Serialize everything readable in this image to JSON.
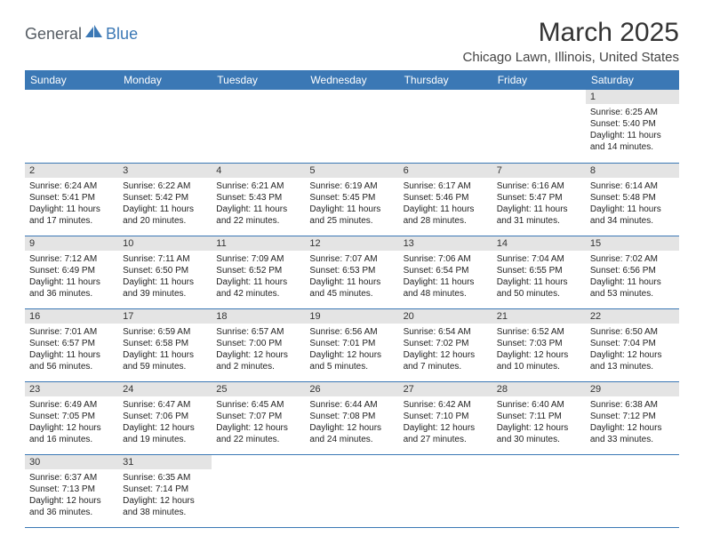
{
  "logo": {
    "part1": "General",
    "part2": "Blue"
  },
  "title": "March 2025",
  "location": "Chicago Lawn, Illinois, United States",
  "colors": {
    "header_bg": "#3b78b5",
    "header_fg": "#ffffff",
    "daynum_bg": "#e4e4e4",
    "border": "#3b78b5",
    "logo_gray": "#555c63",
    "logo_blue": "#3b78b5"
  },
  "weekdays": [
    "Sunday",
    "Monday",
    "Tuesday",
    "Wednesday",
    "Thursday",
    "Friday",
    "Saturday"
  ],
  "weeks": [
    [
      {
        "empty": true
      },
      {
        "empty": true
      },
      {
        "empty": true
      },
      {
        "empty": true
      },
      {
        "empty": true
      },
      {
        "empty": true
      },
      {
        "n": "1",
        "sr": "Sunrise: 6:25 AM",
        "ss": "Sunset: 5:40 PM",
        "d1": "Daylight: 11 hours",
        "d2": "and 14 minutes."
      }
    ],
    [
      {
        "n": "2",
        "sr": "Sunrise: 6:24 AM",
        "ss": "Sunset: 5:41 PM",
        "d1": "Daylight: 11 hours",
        "d2": "and 17 minutes."
      },
      {
        "n": "3",
        "sr": "Sunrise: 6:22 AM",
        "ss": "Sunset: 5:42 PM",
        "d1": "Daylight: 11 hours",
        "d2": "and 20 minutes."
      },
      {
        "n": "4",
        "sr": "Sunrise: 6:21 AM",
        "ss": "Sunset: 5:43 PM",
        "d1": "Daylight: 11 hours",
        "d2": "and 22 minutes."
      },
      {
        "n": "5",
        "sr": "Sunrise: 6:19 AM",
        "ss": "Sunset: 5:45 PM",
        "d1": "Daylight: 11 hours",
        "d2": "and 25 minutes."
      },
      {
        "n": "6",
        "sr": "Sunrise: 6:17 AM",
        "ss": "Sunset: 5:46 PM",
        "d1": "Daylight: 11 hours",
        "d2": "and 28 minutes."
      },
      {
        "n": "7",
        "sr": "Sunrise: 6:16 AM",
        "ss": "Sunset: 5:47 PM",
        "d1": "Daylight: 11 hours",
        "d2": "and 31 minutes."
      },
      {
        "n": "8",
        "sr": "Sunrise: 6:14 AM",
        "ss": "Sunset: 5:48 PM",
        "d1": "Daylight: 11 hours",
        "d2": "and 34 minutes."
      }
    ],
    [
      {
        "n": "9",
        "sr": "Sunrise: 7:12 AM",
        "ss": "Sunset: 6:49 PM",
        "d1": "Daylight: 11 hours",
        "d2": "and 36 minutes."
      },
      {
        "n": "10",
        "sr": "Sunrise: 7:11 AM",
        "ss": "Sunset: 6:50 PM",
        "d1": "Daylight: 11 hours",
        "d2": "and 39 minutes."
      },
      {
        "n": "11",
        "sr": "Sunrise: 7:09 AM",
        "ss": "Sunset: 6:52 PM",
        "d1": "Daylight: 11 hours",
        "d2": "and 42 minutes."
      },
      {
        "n": "12",
        "sr": "Sunrise: 7:07 AM",
        "ss": "Sunset: 6:53 PM",
        "d1": "Daylight: 11 hours",
        "d2": "and 45 minutes."
      },
      {
        "n": "13",
        "sr": "Sunrise: 7:06 AM",
        "ss": "Sunset: 6:54 PM",
        "d1": "Daylight: 11 hours",
        "d2": "and 48 minutes."
      },
      {
        "n": "14",
        "sr": "Sunrise: 7:04 AM",
        "ss": "Sunset: 6:55 PM",
        "d1": "Daylight: 11 hours",
        "d2": "and 50 minutes."
      },
      {
        "n": "15",
        "sr": "Sunrise: 7:02 AM",
        "ss": "Sunset: 6:56 PM",
        "d1": "Daylight: 11 hours",
        "d2": "and 53 minutes."
      }
    ],
    [
      {
        "n": "16",
        "sr": "Sunrise: 7:01 AM",
        "ss": "Sunset: 6:57 PM",
        "d1": "Daylight: 11 hours",
        "d2": "and 56 minutes."
      },
      {
        "n": "17",
        "sr": "Sunrise: 6:59 AM",
        "ss": "Sunset: 6:58 PM",
        "d1": "Daylight: 11 hours",
        "d2": "and 59 minutes."
      },
      {
        "n": "18",
        "sr": "Sunrise: 6:57 AM",
        "ss": "Sunset: 7:00 PM",
        "d1": "Daylight: 12 hours",
        "d2": "and 2 minutes."
      },
      {
        "n": "19",
        "sr": "Sunrise: 6:56 AM",
        "ss": "Sunset: 7:01 PM",
        "d1": "Daylight: 12 hours",
        "d2": "and 5 minutes."
      },
      {
        "n": "20",
        "sr": "Sunrise: 6:54 AM",
        "ss": "Sunset: 7:02 PM",
        "d1": "Daylight: 12 hours",
        "d2": "and 7 minutes."
      },
      {
        "n": "21",
        "sr": "Sunrise: 6:52 AM",
        "ss": "Sunset: 7:03 PM",
        "d1": "Daylight: 12 hours",
        "d2": "and 10 minutes."
      },
      {
        "n": "22",
        "sr": "Sunrise: 6:50 AM",
        "ss": "Sunset: 7:04 PM",
        "d1": "Daylight: 12 hours",
        "d2": "and 13 minutes."
      }
    ],
    [
      {
        "n": "23",
        "sr": "Sunrise: 6:49 AM",
        "ss": "Sunset: 7:05 PM",
        "d1": "Daylight: 12 hours",
        "d2": "and 16 minutes."
      },
      {
        "n": "24",
        "sr": "Sunrise: 6:47 AM",
        "ss": "Sunset: 7:06 PM",
        "d1": "Daylight: 12 hours",
        "d2": "and 19 minutes."
      },
      {
        "n": "25",
        "sr": "Sunrise: 6:45 AM",
        "ss": "Sunset: 7:07 PM",
        "d1": "Daylight: 12 hours",
        "d2": "and 22 minutes."
      },
      {
        "n": "26",
        "sr": "Sunrise: 6:44 AM",
        "ss": "Sunset: 7:08 PM",
        "d1": "Daylight: 12 hours",
        "d2": "and 24 minutes."
      },
      {
        "n": "27",
        "sr": "Sunrise: 6:42 AM",
        "ss": "Sunset: 7:10 PM",
        "d1": "Daylight: 12 hours",
        "d2": "and 27 minutes."
      },
      {
        "n": "28",
        "sr": "Sunrise: 6:40 AM",
        "ss": "Sunset: 7:11 PM",
        "d1": "Daylight: 12 hours",
        "d2": "and 30 minutes."
      },
      {
        "n": "29",
        "sr": "Sunrise: 6:38 AM",
        "ss": "Sunset: 7:12 PM",
        "d1": "Daylight: 12 hours",
        "d2": "and 33 minutes."
      }
    ],
    [
      {
        "n": "30",
        "sr": "Sunrise: 6:37 AM",
        "ss": "Sunset: 7:13 PM",
        "d1": "Daylight: 12 hours",
        "d2": "and 36 minutes."
      },
      {
        "n": "31",
        "sr": "Sunrise: 6:35 AM",
        "ss": "Sunset: 7:14 PM",
        "d1": "Daylight: 12 hours",
        "d2": "and 38 minutes."
      },
      {
        "empty": true
      },
      {
        "empty": true
      },
      {
        "empty": true
      },
      {
        "empty": true
      },
      {
        "empty": true
      }
    ]
  ]
}
